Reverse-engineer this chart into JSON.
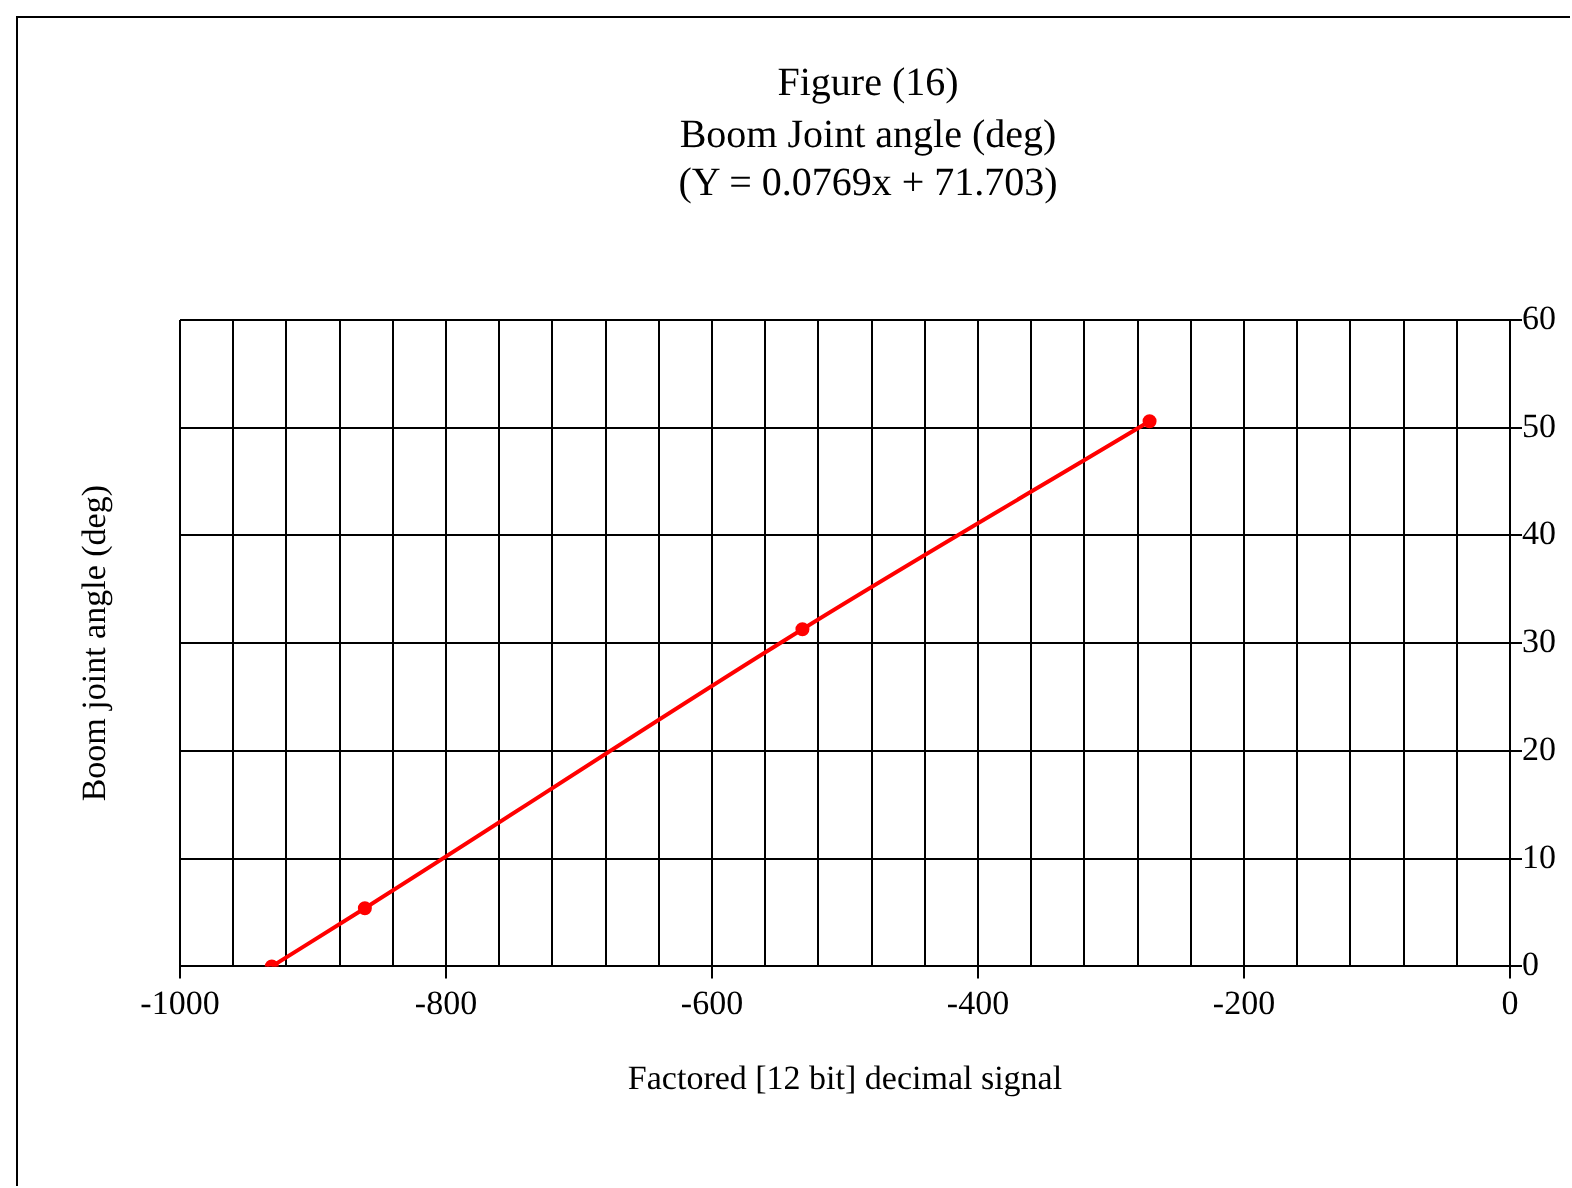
{
  "chart_data": {
    "type": "line",
    "title": "Figure (16)",
    "subtitle": "Boom Joint angle (deg)\n(Y = 0.0769x + 71.703)",
    "xlabel": "Factored [12 bit] decimal signal",
    "ylabel": "Boom joint angle (deg)",
    "x": [
      -931,
      -861,
      -532,
      -271
    ],
    "series": [
      {
        "color": "#ff0000",
        "values": [
          0,
          5.4,
          31.3,
          50.6
        ]
      }
    ],
    "xlim": [
      -1000,
      0
    ],
    "xticks": [
      -1000,
      {
        "value": -960,
        "label": null
      },
      {
        "value": -920,
        "label": null
      },
      {
        "value": -880,
        "label": null
      },
      {
        "value": -840,
        "label": null
      },
      -800,
      {
        "value": -760,
        "label": null
      },
      {
        "value": -720,
        "label": null
      },
      {
        "value": -680,
        "label": null
      },
      {
        "value": -640,
        "label": null
      },
      -600,
      {
        "value": -560,
        "label": null
      },
      {
        "value": -520,
        "label": null
      },
      {
        "value": -480,
        "label": null
      },
      {
        "value": -440,
        "label": null
      },
      -400,
      {
        "value": -360,
        "label": null
      },
      {
        "value": -320,
        "label": null
      },
      {
        "value": -280,
        "label": null
      },
      {
        "value": -240,
        "label": null
      },
      -200,
      {
        "value": -160,
        "label": null
      },
      {
        "value": -120,
        "label": null
      },
      {
        "value": -80,
        "label": null
      },
      {
        "value": -40,
        "label": null
      },
      0
    ],
    "ylim": [
      0,
      60
    ],
    "yticks": [
      0,
      10,
      20,
      30,
      40,
      50,
      60
    ],
    "grid": true,
    "legend": false,
    "marker": "circle",
    "line_style": "solid"
  }
}
